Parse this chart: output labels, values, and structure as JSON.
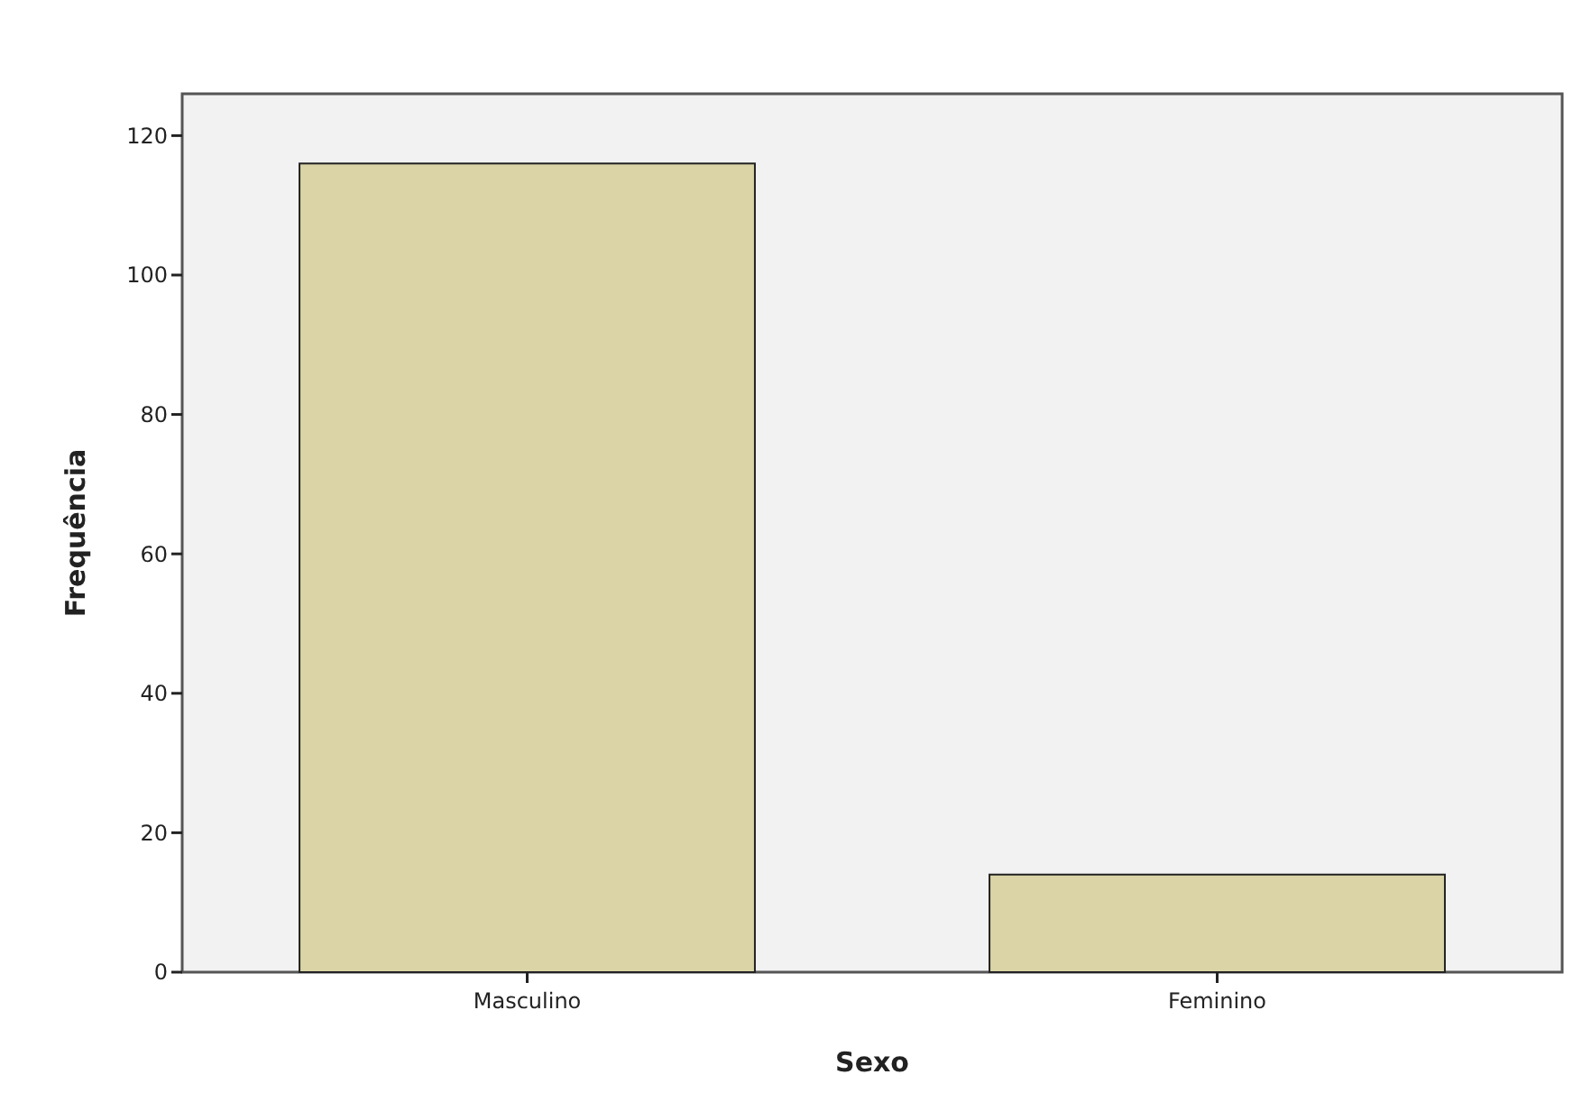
{
  "chart_data": {
    "type": "bar",
    "xlabel": "Sexo",
    "ylabel": "Frequência",
    "categories": [
      "Masculino",
      "Feminino"
    ],
    "values": [
      116,
      14
    ],
    "color": "#dad4a6",
    "ylim": [
      0,
      126
    ],
    "yticks": [
      0,
      20,
      40,
      60,
      80,
      100,
      120
    ],
    "grid": false
  }
}
